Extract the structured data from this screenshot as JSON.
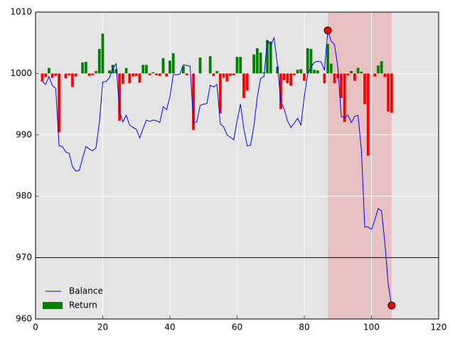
{
  "chart_data": {
    "type": "line",
    "x": [
      2,
      3,
      4,
      5,
      6,
      7,
      8,
      9,
      10,
      11,
      12,
      13,
      14,
      15,
      16,
      17,
      18,
      19,
      20,
      21,
      22,
      23,
      24,
      25,
      26,
      27,
      28,
      29,
      30,
      31,
      32,
      33,
      34,
      35,
      36,
      37,
      38,
      39,
      40,
      41,
      42,
      43,
      44,
      45,
      46,
      47,
      48,
      49,
      50,
      51,
      52,
      53,
      54,
      55,
      56,
      57,
      58,
      59,
      60,
      61,
      62,
      63,
      64,
      65,
      66,
      67,
      68,
      69,
      70,
      71,
      72,
      73,
      74,
      75,
      76,
      77,
      78,
      79,
      80,
      81,
      82,
      83,
      84,
      85,
      86,
      87,
      88,
      89,
      90,
      91,
      92,
      93,
      94,
      95,
      96,
      97,
      98,
      99,
      100,
      101,
      102,
      103,
      104,
      105,
      106
    ],
    "series": [
      {
        "name": "Balance",
        "type": "line",
        "color": "#0000ff",
        "values": [
          998.7,
          998.2,
          999.5,
          998,
          997.6,
          988.2,
          988.1,
          987.2,
          987,
          984.8,
          984.1,
          984.2,
          986.2,
          988.1,
          987.7,
          987.4,
          987.9,
          992,
          998.6,
          998.7,
          999.3,
          1000.8,
          1001.6,
          993.8,
          992.1,
          993.2,
          991.6,
          991.2,
          990.9,
          989.5,
          991,
          992.4,
          992.2,
          992.4,
          992.3,
          992,
          994.6,
          994.1,
          996.2,
          999.8,
          999.8,
          999.9,
          1001.4,
          1001.3,
          1001.2,
          992,
          992.1,
          994.8,
          995,
          995.1,
          998.1,
          997.8,
          998.2,
          991.8,
          991.3,
          990,
          989.6,
          989.2,
          992.3,
          995,
          991,
          988.2,
          988.3,
          991.4,
          996.1,
          999.2,
          999.5,
          1005.4,
          1004.6,
          1005.8,
          1001.5,
          995.4,
          994.2,
          992.3,
          991.2,
          991.9,
          992.7,
          991.6,
          996.2,
          999.9,
          1001,
          1001.8,
          1002,
          1001.9,
          1000.5,
          1007,
          1005.3,
          1004.7,
          1001,
          993,
          992.8,
          993.2,
          992,
          993,
          993.2,
          987.5,
          975,
          975,
          974.6,
          976.1,
          978,
          977.6,
          972.3,
          965.6,
          962.2
        ]
      },
      {
        "name": "Return",
        "type": "bar",
        "color": "#008000",
        "negative_color": "#ff0000",
        "values": [
          -1.3,
          -0.6,
          0.9,
          -0.7,
          -0.4,
          -9.6,
          0,
          -0.8,
          -0.3,
          -2.2,
          -0.5,
          0,
          1.8,
          1.9,
          -0.4,
          -0.3,
          0.4,
          4,
          6.5,
          0,
          0.5,
          1.4,
          0.7,
          -7.7,
          -1.7,
          0.9,
          -1.6,
          -0.5,
          -0.4,
          -1.5,
          1.4,
          1.4,
          -0.3,
          0.2,
          -0.3,
          -0.4,
          2.5,
          -0.5,
          2.1,
          3.3,
          0,
          0,
          1.2,
          -0.3,
          0,
          -9.2,
          0,
          2.6,
          0,
          0,
          2.8,
          -0.4,
          0.4,
          -6.5,
          -0.7,
          -1.3,
          -0.4,
          -0.3,
          2.7,
          2.7,
          -4,
          -2.8,
          0,
          3.1,
          4.1,
          3.4,
          0.2,
          5.4,
          5.2,
          0,
          1.1,
          -5.8,
          -1.1,
          -1.6,
          -2,
          -0.3,
          0.6,
          0.7,
          -1.2,
          4.1,
          4,
          0.6,
          0.5,
          0,
          -1.6,
          4.8,
          1.6,
          -1.6,
          -0.8,
          -4,
          -7.9,
          -0.3,
          0.4,
          -1.2,
          0.9,
          0.3,
          -5,
          -13.4,
          0,
          -0.5,
          1.3,
          2,
          -0.6,
          -6.2,
          -6.4
        ]
      }
    ],
    "bar_base": 1000,
    "markers": {
      "x": [
        87,
        106
      ],
      "values": [
        1007,
        962.2
      ],
      "color": "#ff0000"
    },
    "hline": 970,
    "span": [
      87,
      106
    ],
    "span_color": "#e8a8a8",
    "xlim": [
      0,
      120
    ],
    "xticks": [
      0,
      20,
      40,
      60,
      80,
      100,
      120
    ],
    "ylim": [
      960,
      1010
    ],
    "yticks": [
      960,
      970,
      980,
      990,
      1000,
      1010
    ],
    "grid": true,
    "legend": "lower left"
  }
}
